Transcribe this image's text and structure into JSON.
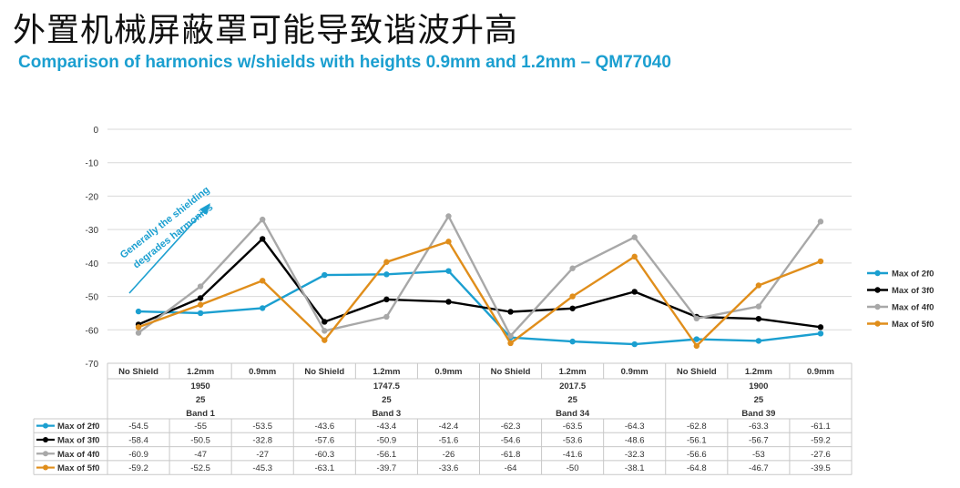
{
  "header": {
    "title": "外置机械屏蔽罩可能导致谐波升高",
    "subtitle": "Comparison of harmonics w/shields with heights 0.9mm and 1.2mm – QM77040"
  },
  "annotation": {
    "text_line1": "Generally the shielding",
    "text_line2": "degrades harmonics"
  },
  "chart_data": {
    "type": "line",
    "title": "",
    "xlabel": "",
    "ylabel": "",
    "ylim": [
      -70,
      0
    ],
    "yticks": [
      "0",
      "-10",
      "-20",
      "-30",
      "-40",
      "-50",
      "-60",
      "-70"
    ],
    "grid": true,
    "legend_position": "right",
    "categories": [
      "No Shield",
      "1.2mm",
      "0.9mm",
      "No Shield",
      "1.2mm",
      "0.9mm",
      "No Shield",
      "1.2mm",
      "0.9mm",
      "No Shield",
      "1.2mm",
      "0.9mm"
    ],
    "groups": [
      {
        "line1": "1950",
        "line2": "25",
        "line3": "Band 1"
      },
      {
        "line1": "1747.5",
        "line2": "25",
        "line3": "Band 3"
      },
      {
        "line1": "2017.5",
        "line2": "25",
        "line3": "Band 34"
      },
      {
        "line1": "1900",
        "line2": "25",
        "line3": "Band 39"
      }
    ],
    "series": [
      {
        "name": "Max of 2f0",
        "color": "#1b9fd0",
        "values": [
          -54.5,
          -55,
          -53.5,
          -43.6,
          -43.4,
          -42.4,
          -62.3,
          -63.5,
          -64.3,
          -62.8,
          -63.3,
          -61.1
        ],
        "labels": [
          "-54.5",
          "-55",
          "-53.5",
          "-43.6",
          "-43.4",
          "-42.4",
          "-62.3",
          "-63.5",
          "-64.3",
          "-62.8",
          "-63.3",
          "-61.1"
        ]
      },
      {
        "name": "Max of 3f0",
        "color": "#000000",
        "values": [
          -58.4,
          -50.5,
          -32.8,
          -57.6,
          -50.9,
          -51.6,
          -54.6,
          -53.6,
          -48.6,
          -56.1,
          -56.7,
          -59.2
        ],
        "labels": [
          "-58.4",
          "-50.5",
          "-32.8",
          "-57.6",
          "-50.9",
          "-51.6",
          "-54.6",
          "-53.6",
          "-48.6",
          "-56.1",
          "-56.7",
          "-59.2"
        ]
      },
      {
        "name": "Max of 4f0",
        "color": "#a8a8a8",
        "values": [
          -60.9,
          -47,
          -27,
          -60.3,
          -56.1,
          -26,
          -61.8,
          -41.6,
          -32.3,
          -56.6,
          -53,
          -27.6
        ],
        "labels": [
          "-60.9",
          "-47",
          "-27",
          "-60.3",
          "-56.1",
          "-26",
          "-61.8",
          "-41.6",
          "-32.3",
          "-56.6",
          "-53",
          "-27.6"
        ]
      },
      {
        "name": "Max of 5f0",
        "color": "#e08e1b",
        "values": [
          -59.2,
          -52.5,
          -45.3,
          -63.1,
          -39.7,
          -33.6,
          -64,
          -50,
          -38.1,
          -64.8,
          -46.7,
          -39.5
        ],
        "labels": [
          "-59.2",
          "-52.5",
          "-45.3",
          "-63.1",
          "-39.7",
          "-33.6",
          "-64",
          "-50",
          "-38.1",
          "-64.8",
          "-46.7",
          "-39.5"
        ]
      }
    ]
  }
}
